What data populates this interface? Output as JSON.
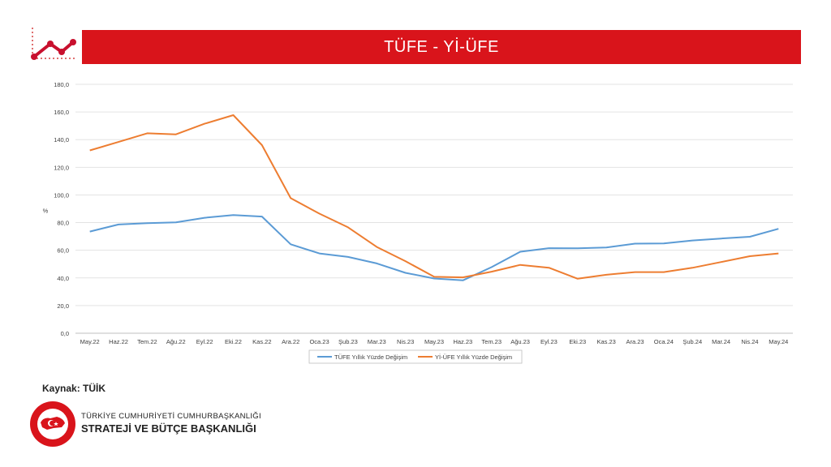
{
  "header": {
    "title": "TÜFE - Yİ-ÜFE"
  },
  "chart_data": {
    "type": "line",
    "title": "",
    "ylabel": "%",
    "ylim": [
      0,
      180
    ],
    "yticks": [
      "0,0",
      "20,0",
      "40,0",
      "60,0",
      "80,0",
      "100,0",
      "120,0",
      "140,0",
      "160,0",
      "180,0"
    ],
    "grid": true,
    "legend_position": "bottom",
    "categories": [
      "May.22",
      "Haz.22",
      "Tem.22",
      "Ağu.22",
      "Eyl.22",
      "Eki.22",
      "Kas.22",
      "Ara.22",
      "Oca.23",
      "Şub.23",
      "Mar.23",
      "Nis.23",
      "May.23",
      "Haz.23",
      "Tem.23",
      "Ağu.23",
      "Eyl.23",
      "Eki.23",
      "Kas.23",
      "Ara.23",
      "Oca.24",
      "Şub.24",
      "Mar.24",
      "Nis.24",
      "May.24"
    ],
    "series": [
      {
        "name": "TÜFE Yıllık Yüzde Değişim",
        "color": "#5b9bd5",
        "values": [
          73.5,
          78.6,
          79.6,
          80.2,
          83.5,
          85.5,
          84.4,
          64.3,
          57.7,
          55.2,
          50.5,
          43.7,
          39.6,
          38.2,
          47.8,
          58.9,
          61.5,
          61.4,
          62.0,
          64.8,
          64.9,
          67.1,
          68.5,
          69.8,
          75.5
        ]
      },
      {
        "name": "Yİ-ÜFE Yıllık Yüzde Değişim",
        "color": "#ed7d31",
        "values": [
          132.2,
          138.3,
          144.6,
          143.8,
          151.5,
          157.7,
          136.0,
          97.7,
          86.5,
          76.6,
          62.4,
          52.1,
          40.8,
          40.4,
          44.5,
          49.4,
          47.4,
          39.4,
          42.3,
          44.2,
          44.2,
          47.3,
          51.5,
          55.7,
          57.7
        ]
      }
    ]
  },
  "source": {
    "text": "Kaynak: TÜİK"
  },
  "organization": {
    "line1": "TÜRKİYE CUMHURİYETİ CUMHURBAŞKANLIĞI",
    "line2": "STRATEJİ VE BÜTÇE BAŞKANLIĞI"
  }
}
